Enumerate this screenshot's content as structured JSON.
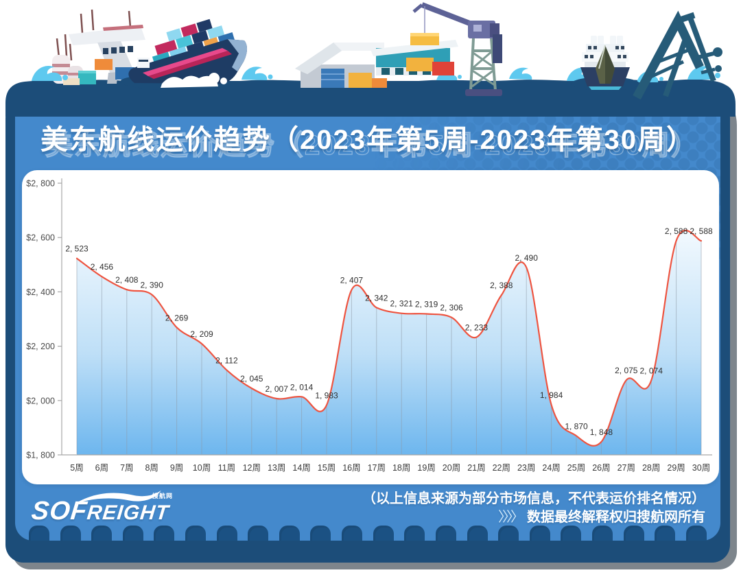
{
  "page": {
    "background": "#ffffff"
  },
  "header": {
    "title": "美东航线运价趋势（2023年第5周-2023年第30周）"
  },
  "chart_data": {
    "type": "area",
    "title": "美东航线运价趋势（2023年第5周-2023年第30周）",
    "categories": [
      "5周",
      "6周",
      "7周",
      "8周",
      "9周",
      "10周",
      "11周",
      "12周",
      "13周",
      "14周",
      "15周",
      "16周",
      "17周",
      "18周",
      "19周",
      "20周",
      "21周",
      "22周",
      "23周",
      "24周",
      "25周",
      "26周",
      "27周",
      "28周",
      "29周",
      "30周"
    ],
    "values": [
      2523,
      2456,
      2408,
      2390,
      2269,
      2209,
      2112,
      2045,
      2007,
      2014,
      1983,
      2407,
      2342,
      2321,
      2319,
      2306,
      2233,
      2388,
      2490,
      1984,
      1870,
      1848,
      2075,
      2074,
      2588,
      2588
    ],
    "data_labels": [
      "2, 523",
      "2, 456",
      "2, 408",
      "2, 390",
      "2, 269",
      "2, 209",
      "2, 112",
      "2, 045",
      "2, 007",
      "2, 014",
      "1, 983",
      "2, 407",
      "2, 342",
      "2, 321",
      "2, 319",
      "2, 306",
      "2, 233",
      "2, 388",
      "2, 490",
      "1, 984",
      "1, 870",
      "1, 848",
      "2, 075",
      "2, 074",
      "2, 588",
      "2, 588"
    ],
    "ylim": [
      1800,
      2800
    ],
    "y_tick_step": 200,
    "y_ticks": [
      "$1, 800",
      "$2, 000",
      "$2, 200",
      "$2, 400",
      "$2, 600",
      "$2, 800"
    ],
    "xlabel": "",
    "ylabel": "",
    "grid": false,
    "legend": false,
    "smooth": true,
    "line_color": "#ee5440",
    "area_gradient_top": "#f2f9fe",
    "area_gradient_bottom": "#6db6ee",
    "drop_line_color": "#8d99a6"
  },
  "footer": {
    "logo_text_main": "SOF",
    "logo_text_rest": "REIGHT",
    "logo_sub": "搜航网",
    "disclaimer_line1": "（以上信息来源为部分市场信息，不代表运价排名情况）",
    "arrows": "〉〉〉〉",
    "disclaimer_line2": "数据最终解释权归搜航网所有"
  },
  "colors": {
    "card_navy": "#1c4d79",
    "panel_blue": "#4489cc",
    "panel_lip": "#2a6094",
    "tooth_navy": "#1b5183",
    "chart_line": "#ee5440",
    "data_label_text": "#2e2e2e",
    "axis_text": "#4a4a4a",
    "footer_text": "#ffffff",
    "splash_cyan": "#5ec9ef"
  },
  "decorations": [
    "silos-icon",
    "port-gantry-icon",
    "cargo-ship-icon",
    "wave-splash-icon",
    "warehouse-icon",
    "warehouse-2-icon",
    "container-crane-icon",
    "ferry-icon",
    "harbor-crane-icon",
    "sea-water"
  ]
}
